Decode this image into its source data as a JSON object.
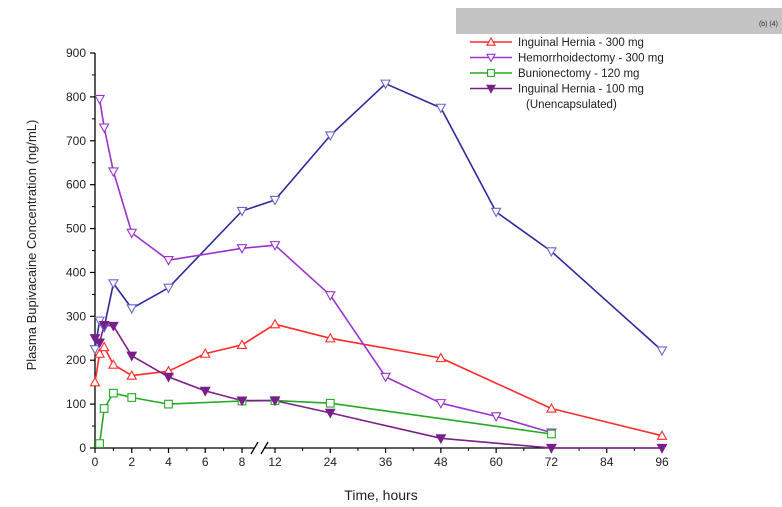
{
  "redaction_label": "(b) (4)",
  "chart_data": {
    "type": "line",
    "xlabel": "Time, hours",
    "ylabel": "Plasma Bupivacaine Concentration (ng/mL)",
    "ylim": [
      0,
      900
    ],
    "yticks": [
      0,
      100,
      200,
      300,
      400,
      500,
      600,
      700,
      800,
      900
    ],
    "xticks": [
      0,
      2,
      4,
      6,
      8,
      12,
      24,
      36,
      48,
      60,
      72,
      84,
      96
    ],
    "x_axis_break": "between 8 and 12 hours (broken axis; 0-12 h expanded scale, 12-96 h compressed scale)",
    "grid": false,
    "legend_position": "top-right",
    "series": [
      {
        "name": "Inguinal Hernia - 300 mg",
        "color": "#ff2a2a",
        "marker": "triangle-up-open",
        "x": [
          0,
          0.25,
          0.5,
          1,
          2,
          4,
          6,
          8,
          12,
          24,
          48,
          72,
          96
        ],
        "y": [
          150,
          215,
          230,
          190,
          165,
          175,
          215,
          235,
          282,
          250,
          205,
          90,
          28
        ]
      },
      {
        "name": "Hemorrhoidectomy - 300 mg",
        "color": "#2d2a9e",
        "marker": "circle-open",
        "x": [
          0,
          0.25,
          0.5,
          1,
          2,
          4,
          8,
          12,
          24,
          36,
          48,
          60,
          72,
          96
        ],
        "y": [
          225,
          290,
          275,
          375,
          318,
          365,
          540,
          565,
          712,
          830,
          775,
          538,
          448,
          222
        ]
      },
      {
        "name": "Hemorrhoidectomy - 300 mg",
        "color": "#9933cc",
        "marker": "triangle-down-open",
        "x": [
          0.25,
          0.5,
          1,
          2,
          4,
          8,
          12,
          24,
          36,
          48,
          60,
          72
        ],
        "y": [
          795,
          730,
          630,
          490,
          428,
          455,
          462,
          348,
          162,
          102,
          72,
          35
        ]
      },
      {
        "name": "Bunionectomy - 120 mg",
        "color": "#22aa22",
        "marker": "square-open",
        "x": [
          0.25,
          0.5,
          1,
          2,
          4,
          8,
          12,
          24,
          72
        ],
        "y": [
          10,
          90,
          125,
          115,
          100,
          107,
          108,
          102,
          32
        ]
      },
      {
        "name": "Inguinal Hernia - 100 mg",
        "sublabel": "(Unencapsulated)",
        "color": "#7a1f8a",
        "marker": "triangle-down-filled",
        "x": [
          0,
          0.25,
          0.5,
          1,
          2,
          4,
          6,
          8,
          12,
          24,
          48,
          72,
          96
        ],
        "y": [
          250,
          240,
          280,
          278,
          210,
          162,
          130,
          108,
          108,
          80,
          22,
          0,
          0
        ]
      }
    ],
    "legend": [
      {
        "label": "Inguinal Hernia - 300 mg",
        "color": "#ff2a2a",
        "marker": "triangle-up-open"
      },
      {
        "label": "Hemorrhoidectomy - 300 mg",
        "color": "#9933cc",
        "marker": "triangle-down-open"
      },
      {
        "label": "Bunionectomy - 120 mg",
        "color": "#22aa22",
        "marker": "square-open"
      },
      {
        "label": "Inguinal Hernia - 100 mg",
        "sublabel": "(Unencapsulated)",
        "color": "#7a1f8a",
        "marker": "triangle-down-filled"
      }
    ]
  }
}
